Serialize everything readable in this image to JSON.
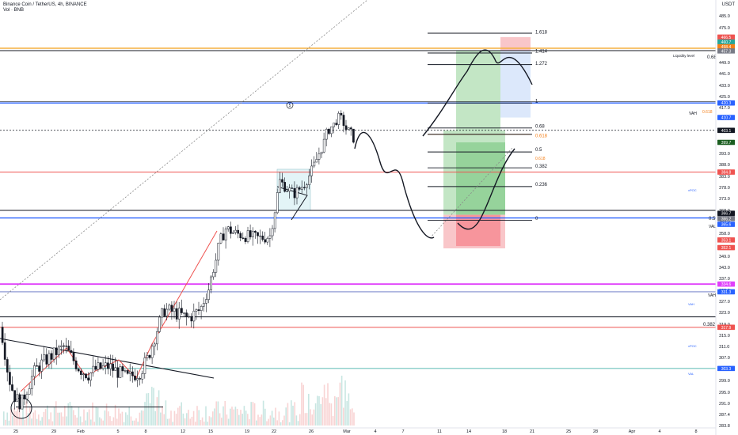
{
  "header": {
    "symbol": "Binance Coin / TetherUS, 4h, BINANCE",
    "volume": "Vol · BNB",
    "currency": "USDT"
  },
  "annotations": {
    "liquidity": "Liquidity level",
    "circle_marker": "5",
    "top_fib": "0.68",
    "left_fib_05": "0.5",
    "left_fib_0382": "0.382",
    "vah_upper": "VAH",
    "val_upper": "VAL",
    "vah_lower": "VAH",
    "vpoc_upper": "vPOC",
    "vam_lower": "VAH",
    "vpoc_lower": "vPOC",
    "val_lower": "VAL",
    "orange_0618": "0.618",
    "orange_0618b": "0.618"
  },
  "fib_labels": [
    "1.618",
    "1.414",
    "1.272",
    "1",
    "0.68",
    "0.618",
    "0.5",
    "0.382",
    "0.236",
    "0"
  ],
  "price_tags": [
    {
      "text": "466.5",
      "price": 466.5,
      "color": "#ef5350"
    },
    {
      "text": "460.7",
      "price": 462.8,
      "color": "#26a69a"
    },
    {
      "text": "458.4",
      "price": 459.6,
      "color": "#f57f17"
    },
    {
      "text": "457.3",
      "price": 456.8,
      "color": "#787b86"
    },
    {
      "text": "420.3",
      "price": 420.3,
      "color": "#2962ff"
    },
    {
      "text": "410.7",
      "price": 410.7,
      "color": "#2962ff"
    },
    {
      "text": "403.1",
      "price": 403.1,
      "color": "#131722"
    },
    {
      "text": "399.7",
      "price": 399.0,
      "color": "#1b5e20"
    },
    {
      "text": "384.8",
      "price": 384.8,
      "color": "#ef5350"
    },
    {
      "text": "366.7",
      "price": 366.7,
      "color": "#131722"
    },
    {
      "text": "366.2",
      "price": 364.3,
      "color": "#787b86"
    },
    {
      "text": "365.6",
      "price": 361.8,
      "color": "#2962ff"
    },
    {
      "text": "353.1",
      "price": 355.4,
      "color": "#ef5350"
    },
    {
      "text": "352.1",
      "price": 352.4,
      "color": "#ef5350"
    },
    {
      "text": "334.6",
      "price": 334.6,
      "color": "#e040fb"
    },
    {
      "text": "331.3",
      "price": 331.3,
      "color": "#2962ff"
    },
    {
      "text": "317.9",
      "price": 317.9,
      "color": "#ef5350"
    },
    {
      "text": "303.3",
      "price": 303.3,
      "color": "#2962ff"
    }
  ],
  "chart_data": {
    "type": "candlestick",
    "title": "Binance Coin / TetherUS, 4h, BINANCE",
    "y_ticks": [
      485.0,
      475.0,
      465.0,
      457.0,
      449.0,
      441.0,
      433.0,
      425.0,
      417.0,
      410.0,
      403.0,
      399.0,
      393.0,
      388.0,
      383.0,
      378.0,
      373.0,
      368.0,
      363.0,
      358.0,
      349.0,
      343.0,
      337.0,
      332.0,
      327.0,
      323.0,
      319.0,
      315.0,
      311.0,
      307.0,
      303.0,
      299.0,
      295.0,
      291.0,
      287.4,
      283.8
    ],
    "x_ticks": [
      "25",
      "29",
      "Feb",
      "5",
      "8",
      "12",
      "15",
      "19",
      "22",
      "26",
      "Mar",
      "4",
      "7",
      "11",
      "14",
      "18",
      "21",
      "25",
      "28",
      "Apr",
      "4",
      "8"
    ],
    "last_price": 403.1,
    "horizontal_levels": [
      {
        "label": "Liquidity level",
        "price": 457.3
      },
      {
        "label": "VAH",
        "price": 420.3
      },
      {
        "label": "vPOC",
        "price": 384.8
      },
      {
        "label": "0.5",
        "price": 368.0
      },
      {
        "label": "VAL",
        "price": 365.6
      },
      {
        "label": "VAH",
        "price": 334.6
      },
      {
        "label": "VAH",
        "price": 331.3
      },
      {
        "label": "0.382",
        "price": 321.0
      },
      {
        "label": "vPOC",
        "price": 317.9
      },
      {
        "label": "VAL",
        "price": 303.3
      }
    ]
  }
}
